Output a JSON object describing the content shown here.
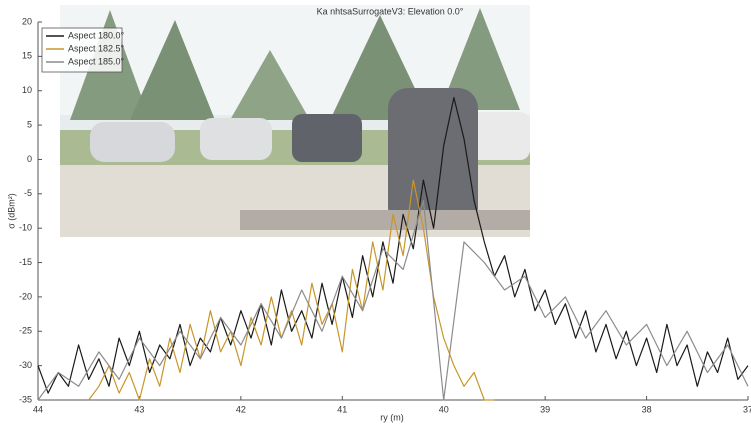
{
  "chart_data": {
    "type": "line",
    "title": "Ka nhtsaSurrogateV3: Elevation 0.0°",
    "xlabel": "ry (m)",
    "ylabel": "σ (dBm²)",
    "xlim": [
      44,
      37
    ],
    "xticks": [
      44,
      43,
      42,
      41,
      40,
      39,
      38,
      37
    ],
    "ylim": [
      -35,
      20
    ],
    "yticks": [
      20,
      15,
      10,
      5,
      0,
      -5,
      -10,
      -15,
      -20,
      -25,
      -30,
      -35
    ],
    "legend": "upper left",
    "series": [
      {
        "name": "Aspect 180.0°",
        "color": "#1a1a1a",
        "x": [
          44,
          43.9,
          43.8,
          43.7,
          43.6,
          43.5,
          43.4,
          43.3,
          43.2,
          43.1,
          43,
          42.9,
          42.8,
          42.7,
          42.6,
          42.5,
          42.4,
          42.3,
          42.2,
          42.1,
          42,
          41.9,
          41.8,
          41.7,
          41.6,
          41.5,
          41.4,
          41.3,
          41.2,
          41.1,
          41,
          40.9,
          40.8,
          40.7,
          40.6,
          40.5,
          40.4,
          40.3,
          40.2,
          40.1,
          40,
          39.9,
          39.8,
          39.7,
          39.6,
          39.5,
          39.4,
          39.3,
          39.2,
          39.1,
          39,
          38.9,
          38.8,
          38.7,
          38.6,
          38.5,
          38.4,
          38.3,
          38.2,
          38.1,
          38,
          37.9,
          37.8,
          37.7,
          37.6,
          37.5,
          37.4,
          37.3,
          37.2,
          37.1,
          37
        ],
        "values": [
          -30,
          -34,
          -31,
          -33,
          -27,
          -32,
          -29,
          -33,
          -26,
          -30,
          -25,
          -31,
          -27,
          -29,
          -24,
          -30,
          -26,
          -28,
          -23,
          -27,
          -22,
          -26,
          -21,
          -27,
          -19,
          -25,
          -22,
          -26,
          -18,
          -24,
          -17,
          -23,
          -14,
          -20,
          -12,
          -18,
          -8,
          -13,
          -3,
          -10,
          2,
          9,
          3,
          -6,
          -12,
          -17,
          -14,
          -20,
          -16,
          -22,
          -19,
          -24,
          -21,
          -26,
          -22,
          -28,
          -24,
          -29,
          -25,
          -30,
          -26,
          -31,
          -24,
          -30,
          -27,
          -33,
          -28,
          -31,
          -26,
          -32,
          -30
        ]
      },
      {
        "name": "Aspect 182.5°",
        "color": "#c8962a",
        "x": [
          43.5,
          43.4,
          43.3,
          43.2,
          43.1,
          43,
          42.9,
          42.8,
          42.7,
          42.6,
          42.5,
          42.4,
          42.3,
          42.2,
          42.1,
          42,
          41.9,
          41.8,
          41.7,
          41.6,
          41.5,
          41.4,
          41.3,
          41.2,
          41.1,
          41,
          40.9,
          40.8,
          40.7,
          40.6,
          40.5,
          40.4,
          40.3,
          40.2,
          40.1,
          40,
          39.9,
          39.8,
          39.7,
          39.6,
          39.5
        ],
        "values": [
          -35,
          -33,
          -30,
          -34,
          -31,
          -35,
          -29,
          -33,
          -26,
          -31,
          -24,
          -29,
          -22,
          -28,
          -25,
          -30,
          -23,
          -27,
          -20,
          -26,
          -22,
          -27,
          -18,
          -24,
          -21,
          -28,
          -16,
          -22,
          -12,
          -19,
          -8,
          -14,
          -3,
          -10,
          -20,
          -26,
          -30,
          -33,
          -31,
          -35,
          -35
        ]
      },
      {
        "name": "Aspect 185.0°",
        "color": "#8c8c8c",
        "x": [
          44,
          43.8,
          43.6,
          43.4,
          43.2,
          43,
          42.8,
          42.6,
          42.4,
          42.2,
          42,
          41.8,
          41.6,
          41.4,
          41.2,
          41,
          40.8,
          40.6,
          40.4,
          40.2,
          40,
          39.8,
          39.6,
          39.4,
          39.2,
          39,
          38.8,
          38.6,
          38.4,
          38.2,
          38,
          37.8,
          37.6,
          37.4,
          37.2,
          37
        ],
        "values": [
          -35,
          -31,
          -33,
          -28,
          -32,
          -26,
          -30,
          -25,
          -29,
          -23,
          -27,
          -21,
          -26,
          -19,
          -25,
          -17,
          -22,
          -13,
          -16,
          -6,
          -35,
          -12,
          -15,
          -19,
          -17,
          -23,
          -20,
          -26,
          -22,
          -27,
          -24,
          -30,
          -25,
          -31,
          -27,
          -33
        ]
      }
    ]
  }
}
